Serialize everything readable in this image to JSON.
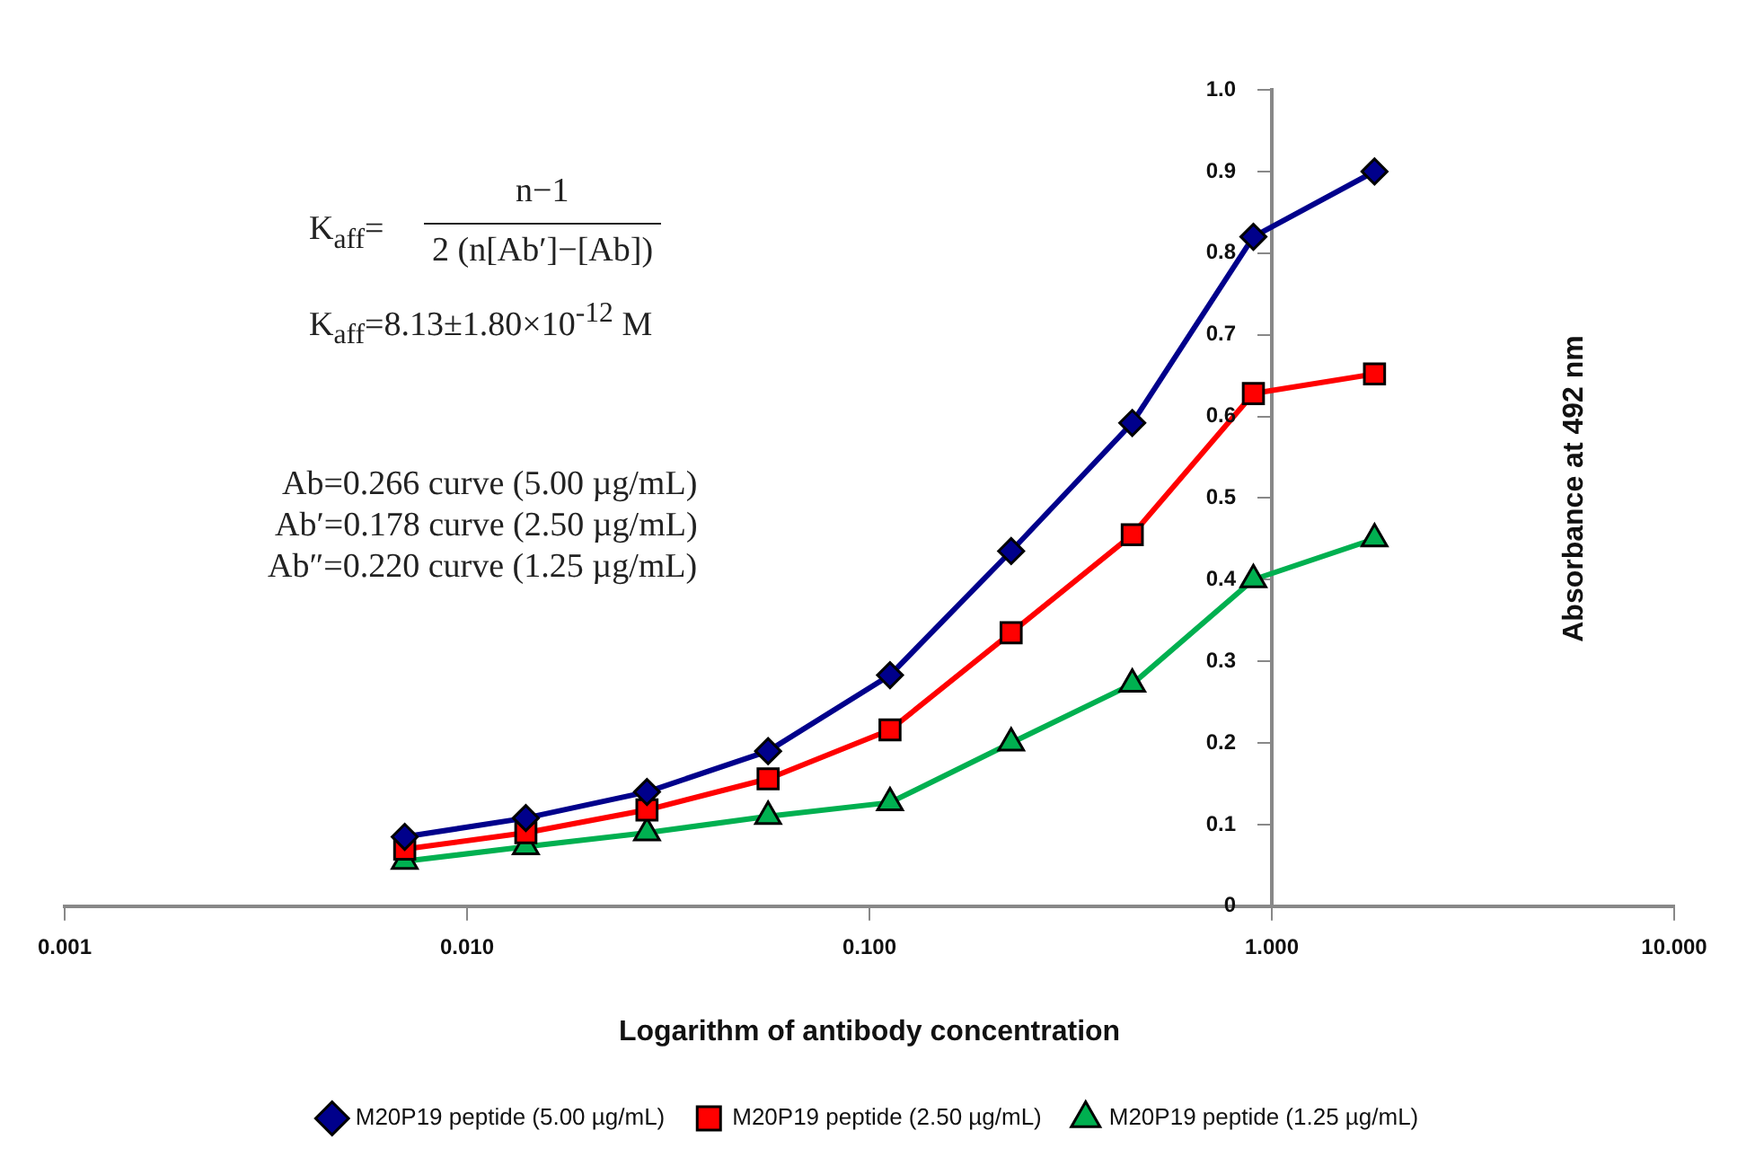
{
  "chart_data": {
    "type": "line",
    "xlabel": "Logarithm of antibody concentration",
    "ylabel": "Absorbance at 492 nm",
    "log": "x",
    "x": [
      0.007,
      0.014,
      0.028,
      0.056,
      0.1125,
      0.225,
      0.45,
      0.9,
      1.8
    ],
    "series": [
      {
        "name": "M20P19 peptide (5.00 µg/mL)",
        "color": "#00008b",
        "marker": "diamond",
        "values": [
          0.085,
          0.108,
          0.14,
          0.19,
          0.283,
          0.435,
          0.592,
          0.82,
          0.9
        ]
      },
      {
        "name": "M20P19 peptide (2.50 µg/mL)",
        "color": "#ff0000",
        "marker": "square",
        "values": [
          0.07,
          0.09,
          0.118,
          0.156,
          0.216,
          0.335,
          0.455,
          0.628,
          0.652
        ]
      },
      {
        "name": "M20P19 peptide (1.25 µg/mL)",
        "color": "#00b050",
        "marker": "triangle",
        "values": [
          0.055,
          0.073,
          0.09,
          0.11,
          0.127,
          0.2,
          0.272,
          0.4,
          0.45
        ]
      }
    ],
    "xlim": [
      0.001,
      10
    ],
    "xticks": [
      {
        "value": 0.001,
        "label": "0.001"
      },
      {
        "value": 0.01,
        "label": "0.010"
      },
      {
        "value": 0.1,
        "label": "0.100"
      },
      {
        "value": 1,
        "label": "1.000"
      },
      {
        "value": 10,
        "label": "10.000"
      }
    ],
    "ylim": [
      0,
      1
    ],
    "yticks": [
      0,
      0.1,
      0.2,
      0.3,
      0.4,
      0.5,
      0.6,
      0.7,
      0.8,
      0.9,
      {
        "value": 1,
        "label": "1.0"
      }
    ],
    "grid": false,
    "legend": "bottom",
    "line_style": "solid",
    "annotations": [
      "K$_{aff}$=",
      "n−1",
      "2 (n[Ab′]−[Ab])",
      "K$_{aff}$=8.13±1.80×10$^{-12}$ M",
      "Ab=0.266 curve (5.00 µg/mL)",
      "Ab′=0.178 curve (2.50 µg/mL)",
      "Ab″=0.220 curve (1.25 µg/mL)"
    ]
  }
}
